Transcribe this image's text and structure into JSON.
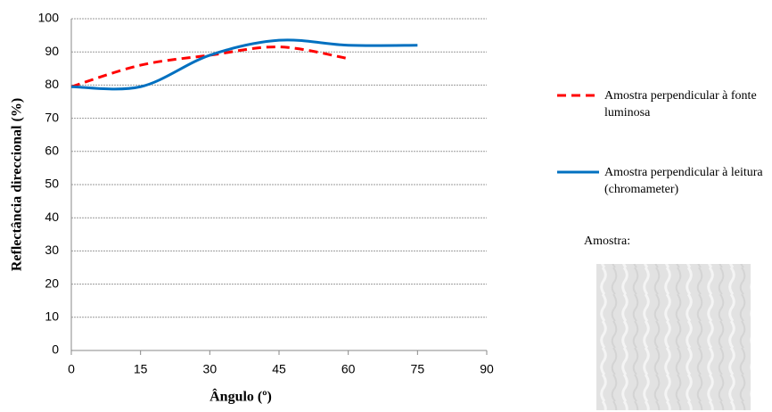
{
  "chart_data": {
    "type": "line",
    "x_label": "Ângulo (º)",
    "y_label": "Reflectância direccional (%)",
    "x": [
      0,
      15,
      30,
      45,
      60,
      75
    ],
    "series": [
      {
        "name": "Amostra perpendicular à fonte luminosa",
        "color": "#ff0000",
        "dash": true,
        "values": [
          79.5,
          86,
          89,
          91.5,
          88,
          null
        ]
      },
      {
        "name": "Amostra perpendicular à leitura (chromameter)",
        "color": "#0070c0",
        "dash": false,
        "values": [
          79.5,
          79.5,
          89,
          93.5,
          92,
          92
        ]
      }
    ],
    "xlim": [
      0,
      90
    ],
    "xticks": [
      0,
      15,
      30,
      45,
      60,
      75,
      90
    ],
    "ylim": [
      0,
      100
    ],
    "yticks": [
      0,
      10,
      20,
      30,
      40,
      50,
      60,
      70,
      80,
      90,
      100
    ],
    "grid": true,
    "sample_label": "Amostra:"
  }
}
